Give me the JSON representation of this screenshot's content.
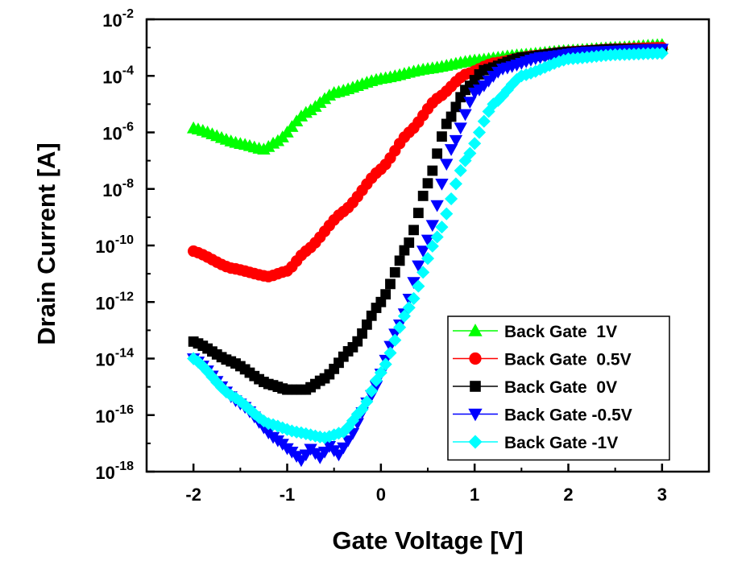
{
  "chart_data": {
    "type": "scatter",
    "title": "",
    "xlabel": "Gate Voltage [V]",
    "ylabel": "Drain Current [A]",
    "xlim": [
      -2.5,
      3.5
    ],
    "ylim": [
      -18,
      -2
    ],
    "yscale": "log",
    "x_ticks": [
      "-2",
      "-1",
      "0",
      "1",
      "2",
      "3"
    ],
    "y_ticks": [
      {
        "base": "10",
        "exp": "-2",
        "value": -2
      },
      {
        "base": "10",
        "exp": "-4",
        "value": -4
      },
      {
        "base": "10",
        "exp": "-6",
        "value": -6
      },
      {
        "base": "10",
        "exp": "-8",
        "value": -8
      },
      {
        "base": "10",
        "exp": "-10",
        "value": -10
      },
      {
        "base": "10",
        "exp": "-12",
        "value": -12
      },
      {
        "base": "10",
        "exp": "-14",
        "value": -14
      },
      {
        "base": "10",
        "exp": "-16",
        "value": -16
      },
      {
        "base": "10",
        "exp": "-18",
        "value": -18
      }
    ],
    "legend_position": "bottom-right",
    "grid": false,
    "x_range": [
      -2,
      3
    ],
    "x_step": 0.05,
    "series": [
      {
        "name": "Back Gate  1V",
        "color": "#00ff00",
        "marker": "triangle-up",
        "anchors_x": [
          -2,
          -1.5,
          -1.25,
          -1.1,
          -0.8,
          -0.5,
          0,
          0.5,
          1,
          1.5,
          2,
          2.5,
          3
        ],
        "anchors_log10_current": [
          -5.85,
          -6.4,
          -6.6,
          -6.3,
          -5.3,
          -4.6,
          -4.1,
          -3.75,
          -3.45,
          -3.25,
          -3.1,
          -3.0,
          -2.9
        ]
      },
      {
        "name": "Back Gate  0.5V",
        "color": "#ff0000",
        "marker": "circle",
        "anchors_x": [
          -2,
          -1.6,
          -1.2,
          -1.0,
          -0.8,
          -0.4,
          0,
          0.3,
          0.6,
          0.9,
          1.2,
          1.6,
          2,
          2.5,
          3
        ],
        "anchors_log10_current": [
          -10.2,
          -10.8,
          -11.1,
          -10.9,
          -10.2,
          -8.8,
          -7.3,
          -6.0,
          -4.8,
          -3.95,
          -3.55,
          -3.3,
          -3.15,
          -3.05,
          -3.0
        ]
      },
      {
        "name": "Back Gate  0V",
        "color": "#000000",
        "marker": "square",
        "anchors_x": [
          -2,
          -1.6,
          -1.2,
          -1.0,
          -0.8,
          -0.6,
          -0.3,
          0,
          0.3,
          0.5,
          0.7,
          0.9,
          1.1,
          1.5,
          2,
          2.5,
          3
        ],
        "anchors_log10_current": [
          -13.4,
          -14.1,
          -14.9,
          -15.1,
          -15.1,
          -14.7,
          -13.6,
          -12.0,
          -9.9,
          -7.8,
          -5.7,
          -4.5,
          -3.8,
          -3.35,
          -3.15,
          -3.05,
          -3.05
        ]
      },
      {
        "name": "Back Gate -0.5V",
        "color": "#0000ff",
        "marker": "triangle-down",
        "anchors_x": [
          -2,
          -1.5,
          -1.1,
          -0.95,
          -0.85,
          -0.75,
          -0.65,
          -0.55,
          -0.45,
          -0.35,
          -0.1,
          0.2,
          0.5,
          0.75,
          1.0,
          1.3,
          1.7,
          2.2,
          3
        ],
        "anchors_log10_current": [
          -14.0,
          -15.6,
          -16.9,
          -17.3,
          -17.6,
          -17.2,
          -17.5,
          -17.1,
          -17.4,
          -16.9,
          -15.3,
          -12.8,
          -9.8,
          -6.6,
          -4.6,
          -3.75,
          -3.35,
          -3.15,
          -3.05
        ]
      },
      {
        "name": "Back Gate -1V",
        "color": "#00ffff",
        "marker": "diamond",
        "anchors_x": [
          -2,
          -1.6,
          -1.2,
          -0.9,
          -0.6,
          -0.4,
          -0.2,
          0,
          0.3,
          0.6,
          0.9,
          1.2,
          1.5,
          2,
          2.5,
          3
        ],
        "anchors_log10_current": [
          -14.0,
          -15.3,
          -16.3,
          -16.6,
          -16.8,
          -16.6,
          -15.8,
          -14.5,
          -12.2,
          -9.7,
          -7.0,
          -5.0,
          -4.0,
          -3.4,
          -3.25,
          -3.2
        ]
      }
    ]
  }
}
